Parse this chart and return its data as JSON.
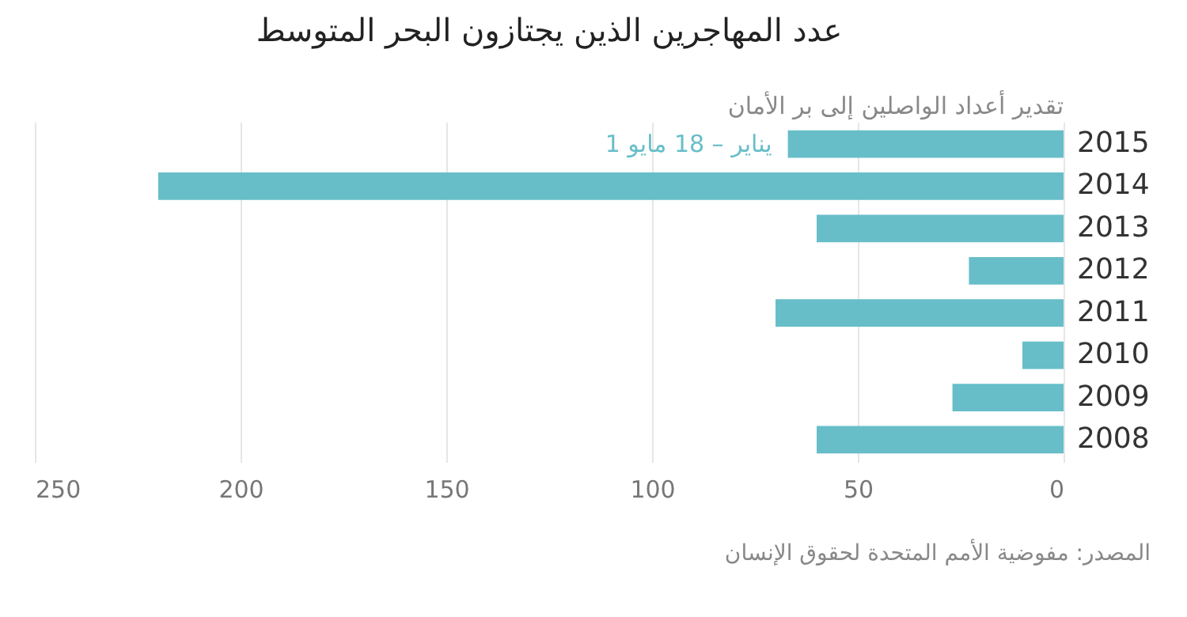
{
  "chart_data": {
    "type": "bar",
    "orientation": "horizontal",
    "title": "عدد المهاجرين الذين يجتازون البحر المتوسط",
    "subtitle": "تقدير أعداد الواصلين إلى بر الأمان",
    "categories": [
      "2015",
      "2014",
      "2013",
      "2012",
      "2011",
      "2010",
      "2009",
      "2008"
    ],
    "values": [
      67,
      220,
      60,
      23,
      70,
      10,
      27,
      60
    ],
    "color": "#67bec9",
    "xlim": [
      250,
      0
    ],
    "xticks": [
      250,
      200,
      150,
      100,
      50,
      0
    ],
    "grid": "x",
    "annotations": [
      {
        "text": "1 يناير – 18 مايو",
        "x": 67,
        "y": "2015"
      },
      "المصدر: مفوضية الأمم المتحدة لحقوق الإنسان"
    ]
  }
}
